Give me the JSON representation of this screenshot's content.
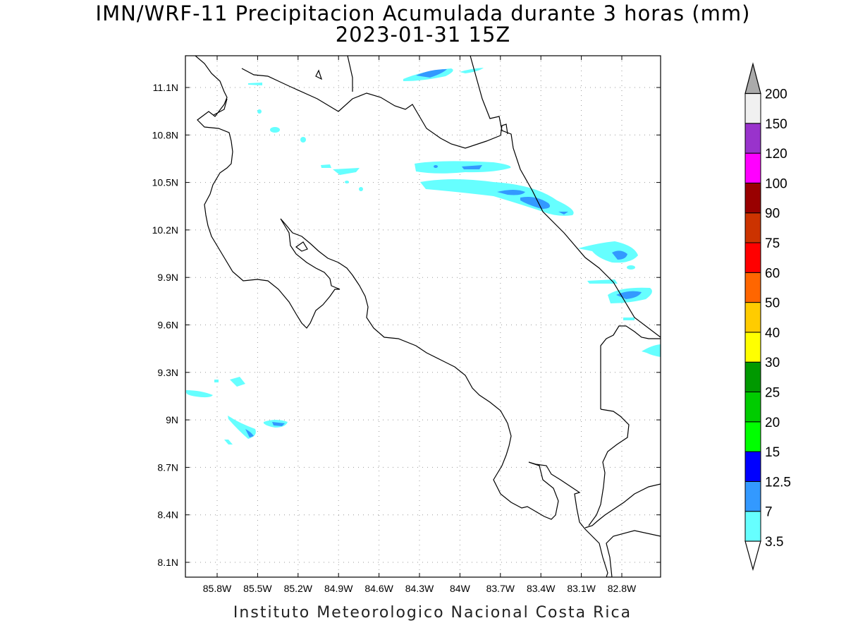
{
  "header": {
    "title": "IMN/WRF-11 Precipitacion Acumulada durante 3 horas (mm)",
    "subtitle": "2023-01-31 15Z"
  },
  "footer": {
    "credit": "Instituto Meteorologico Nacional Costa Rica"
  },
  "map": {
    "lon_ticks": [
      "85.8W",
      "85.5W",
      "85.2W",
      "84.9W",
      "84.6W",
      "84.3W",
      "84W",
      "83.7W",
      "83.4W",
      "83.1W",
      "82.8W"
    ],
    "lat_ticks": [
      "11.1N",
      "10.8N",
      "10.5N",
      "10.2N",
      "9.9N",
      "9.6N",
      "9.3N",
      "9N",
      "8.7N",
      "8.4N",
      "8.1N"
    ],
    "gridlines": true,
    "gridline_style": "dotted"
  },
  "legend": {
    "levels": [
      {
        "label": "3.5",
        "color": "#66ffff"
      },
      {
        "label": "7",
        "color": "#3399ff"
      },
      {
        "label": "12.5",
        "color": "#0000ff"
      },
      {
        "label": "15",
        "color": "#00ff00"
      },
      {
        "label": "20",
        "color": "#00cc00"
      },
      {
        "label": "25",
        "color": "#009900"
      },
      {
        "label": "30",
        "color": "#ffff00"
      },
      {
        "label": "40",
        "color": "#ffcc00"
      },
      {
        "label": "50",
        "color": "#ff6600"
      },
      {
        "label": "60",
        "color": "#ff0000"
      },
      {
        "label": "75",
        "color": "#cc3300"
      },
      {
        "label": "90",
        "color": "#990000"
      },
      {
        "label": "100",
        "color": "#ff00ff"
      },
      {
        "label": "120",
        "color": "#9933cc"
      },
      {
        "label": "150",
        "color": "#f0f0f0"
      },
      {
        "label": "200",
        "color": "#aaaaaa"
      }
    ],
    "light_color": "#66ffff",
    "medium_color": "#3399ff"
  }
}
